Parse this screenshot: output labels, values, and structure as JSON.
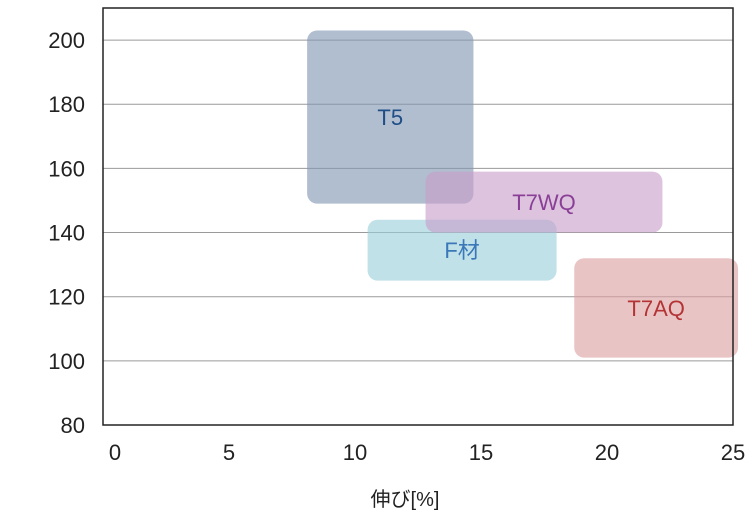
{
  "chart_data": {
    "type": "area",
    "title": "",
    "xlabel": "伸び[%]",
    "ylabel": "",
    "xlim": [
      0,
      25
    ],
    "ylim": [
      80,
      210
    ],
    "x_ticks": [
      0,
      5,
      10,
      15,
      20,
      25
    ],
    "y_ticks": [
      80,
      100,
      120,
      140,
      160,
      180,
      200
    ],
    "grid": "horizontal",
    "regions": [
      {
        "label": "T5",
        "x_min": 8.1,
        "x_max": 14.7,
        "y_min": 149,
        "y_max": 203,
        "fill": "#7f96b3",
        "text_color": "#1f4d86"
      },
      {
        "label": "F材",
        "x_min": 10.5,
        "x_max": 18.0,
        "y_min": 125,
        "y_max": 144,
        "fill": "#9bcfdb",
        "text_color": "#3a78b8"
      },
      {
        "label": "T7WQ",
        "x_min": 12.8,
        "x_max": 22.2,
        "y_min": 140,
        "y_max": 159,
        "fill": "#c89ec9",
        "text_color": "#8a3f97"
      },
      {
        "label": "T7AQ",
        "x_min": 18.7,
        "x_max": 25.2,
        "y_min": 101,
        "y_max": 132,
        "fill": "#dca0a1",
        "text_color": "#b43436"
      }
    ]
  }
}
